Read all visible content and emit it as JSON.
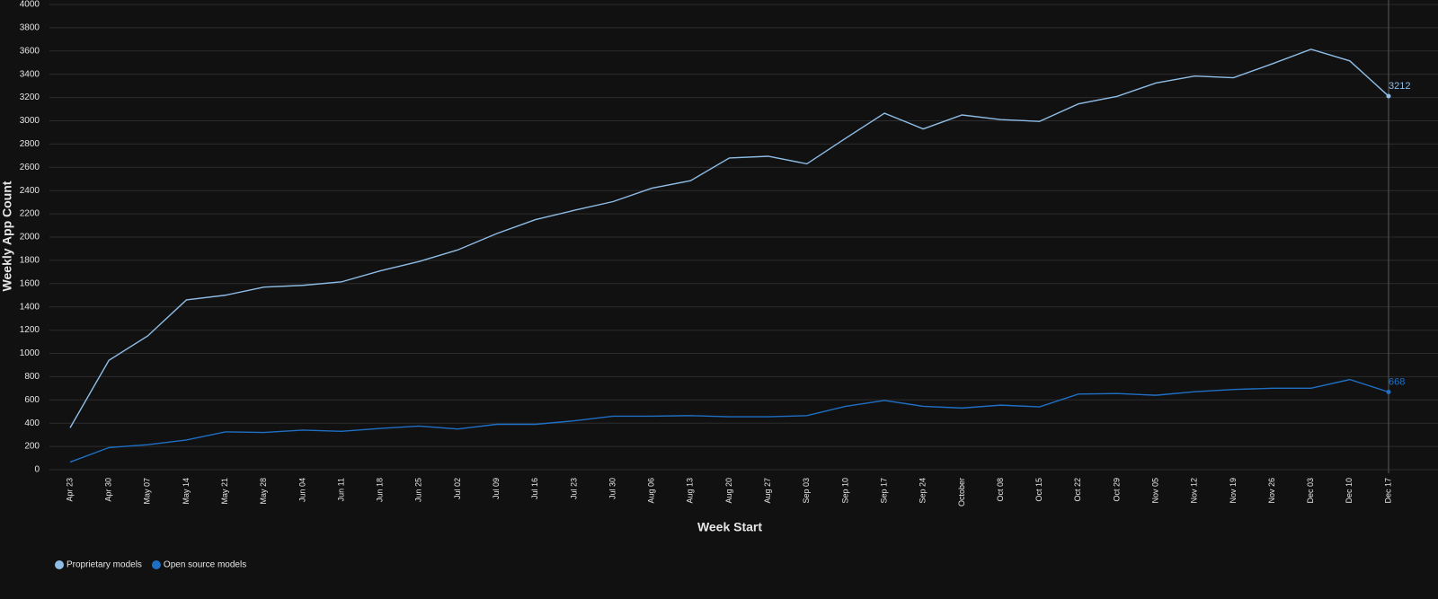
{
  "chart_data": {
    "type": "line",
    "x_label": "Week Start",
    "y_label": "Weekly App Count",
    "categories": [
      "Apr 23",
      "Apr 30",
      "May 07",
      "May 14",
      "May 21",
      "May 28",
      "Jun 04",
      "Jun 11",
      "Jun 18",
      "Jun 25",
      "Jul 02",
      "Jul 09",
      "Jul 16",
      "Jul 23",
      "Jul 30",
      "Aug 06",
      "Aug 13",
      "Aug 20",
      "Aug 27",
      "Sep 03",
      "Sep 10",
      "Sep 17",
      "Sep 24",
      "October",
      "Oct 08",
      "Oct 15",
      "Oct 22",
      "Oct 29",
      "Nov 05",
      "Nov 12",
      "Nov 19",
      "Nov 26",
      "Dec 03",
      "Dec 10",
      "Dec 17"
    ],
    "series": [
      {
        "name": "Proprietary models",
        "color": "#8fbde6",
        "values": [
          360,
          940,
          1150,
          1460,
          1500,
          1570,
          1585,
          1615,
          1710,
          1790,
          1890,
          2030,
          2150,
          2230,
          2305,
          2420,
          2485,
          2680,
          2695,
          2630,
          2850,
          3065,
          2930,
          3050,
          3010,
          2995,
          3145,
          3210,
          3325,
          3385,
          3370,
          3490,
          3615,
          3515,
          3212
        ]
      },
      {
        "name": "Open source models",
        "color": "#1f6fc4",
        "values": [
          65,
          190,
          215,
          255,
          325,
          320,
          340,
          330,
          355,
          375,
          350,
          390,
          390,
          420,
          460,
          460,
          465,
          455,
          455,
          465,
          545,
          595,
          545,
          530,
          555,
          540,
          650,
          655,
          640,
          670,
          690,
          700,
          700,
          775,
          668
        ]
      }
    ],
    "ylim": [
      0,
      4000
    ],
    "yticks": [
      0,
      200,
      400,
      600,
      800,
      1000,
      1200,
      1400,
      1600,
      1800,
      2000,
      2200,
      2400,
      2600,
      2800,
      3000,
      3200,
      3400,
      3600,
      3800,
      4000
    ],
    "grid": true
  }
}
